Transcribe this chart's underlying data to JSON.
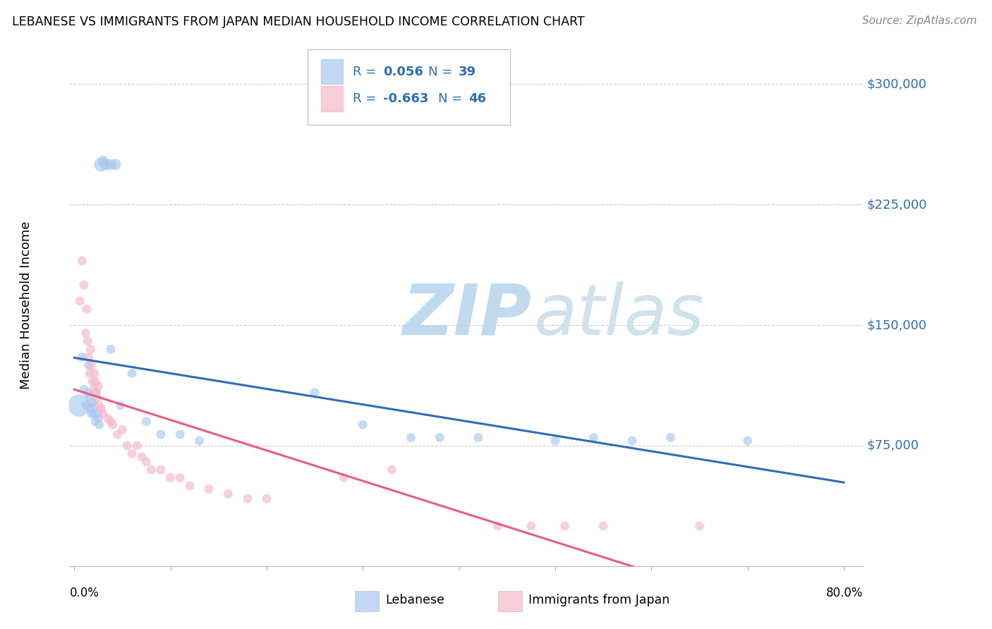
{
  "title": "LEBANESE VS IMMIGRANTS FROM JAPAN MEDIAN HOUSEHOLD INCOME CORRELATION CHART",
  "source": "Source: ZipAtlas.com",
  "ylabel": "Median Household Income",
  "blue_color": "#A8C8F0",
  "pink_color": "#F5B8CB",
  "trendline_blue_color": "#2E6DB4",
  "trendline_pink_color": "#E85C80",
  "legend_text_color": "#2E6DB4",
  "watermark_color": "#C8DFF0",
  "ylim": [
    0,
    325000
  ],
  "xlim": [
    -0.005,
    0.82
  ],
  "blue_data_x": [
    0.028,
    0.03,
    0.033,
    0.038,
    0.043,
    0.005,
    0.008,
    0.01,
    0.012,
    0.014,
    0.015,
    0.016,
    0.017,
    0.018,
    0.019,
    0.02,
    0.021,
    0.022,
    0.022,
    0.024,
    0.025,
    0.026,
    0.038,
    0.048,
    0.06,
    0.075,
    0.09,
    0.11,
    0.13,
    0.25,
    0.3,
    0.35,
    0.38,
    0.42,
    0.5,
    0.54,
    0.58,
    0.62,
    0.7
  ],
  "blue_data_y": [
    250000,
    252000,
    250000,
    250000,
    250000,
    100000,
    130000,
    110000,
    100000,
    108000,
    125000,
    105000,
    98000,
    95000,
    102000,
    95000,
    100000,
    108000,
    90000,
    95000,
    92000,
    88000,
    135000,
    100000,
    120000,
    90000,
    82000,
    82000,
    78000,
    108000,
    88000,
    80000,
    80000,
    80000,
    78000,
    80000,
    78000,
    80000,
    78000
  ],
  "blue_sizes": [
    200,
    120,
    120,
    120,
    120,
    500,
    80,
    80,
    80,
    80,
    80,
    80,
    80,
    80,
    80,
    80,
    80,
    80,
    80,
    80,
    80,
    80,
    80,
    80,
    80,
    80,
    80,
    80,
    80,
    80,
    80,
    80,
    80,
    80,
    80,
    80,
    80,
    80,
    80
  ],
  "pink_data_x": [
    0.006,
    0.008,
    0.01,
    0.012,
    0.013,
    0.014,
    0.015,
    0.016,
    0.017,
    0.018,
    0.019,
    0.02,
    0.021,
    0.022,
    0.023,
    0.024,
    0.025,
    0.026,
    0.028,
    0.03,
    0.035,
    0.038,
    0.04,
    0.045,
    0.05,
    0.055,
    0.06,
    0.065,
    0.07,
    0.075,
    0.08,
    0.09,
    0.1,
    0.11,
    0.12,
    0.14,
    0.16,
    0.18,
    0.2,
    0.28,
    0.33,
    0.44,
    0.475,
    0.51,
    0.55,
    0.65
  ],
  "pink_data_y": [
    165000,
    190000,
    175000,
    145000,
    160000,
    140000,
    130000,
    120000,
    135000,
    125000,
    115000,
    110000,
    120000,
    115000,
    108000,
    105000,
    112000,
    100000,
    98000,
    95000,
    92000,
    90000,
    88000,
    82000,
    85000,
    75000,
    70000,
    75000,
    68000,
    65000,
    60000,
    60000,
    55000,
    55000,
    50000,
    48000,
    45000,
    42000,
    42000,
    55000,
    60000,
    25000,
    25000,
    25000,
    25000,
    25000
  ],
  "pink_sizes": [
    80,
    80,
    80,
    80,
    80,
    80,
    80,
    80,
    80,
    80,
    80,
    80,
    80,
    80,
    80,
    80,
    80,
    80,
    80,
    80,
    80,
    80,
    80,
    80,
    80,
    80,
    80,
    80,
    80,
    80,
    80,
    80,
    80,
    80,
    80,
    80,
    80,
    80,
    80,
    80,
    80,
    80,
    80,
    80,
    80,
    80
  ]
}
